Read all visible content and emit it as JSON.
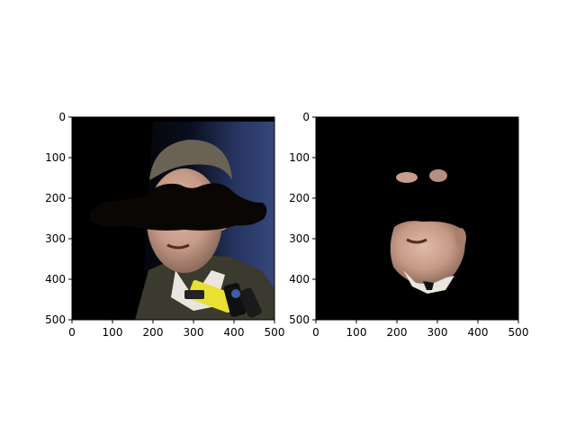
{
  "chart_data": [
    {
      "type": "image",
      "title": "",
      "xlabel": "",
      "ylabel": "",
      "xlim": [
        0,
        500
      ],
      "ylim": [
        500,
        0
      ],
      "xticks": [
        0,
        100,
        200,
        300,
        400,
        500
      ],
      "yticks": [
        0,
        100,
        200,
        300,
        400,
        500
      ],
      "grid": false,
      "image_content": "photo of a man in a suit speaking into microphones, with a large black mustache-shaped mask covering the eyes and nose region; black background on the left side"
    },
    {
      "type": "image",
      "title": "",
      "xlabel": "",
      "ylabel": "",
      "xlim": [
        0,
        500
      ],
      "ylim": [
        500,
        0
      ],
      "xticks": [
        0,
        100,
        200,
        300,
        400,
        500
      ],
      "yticks": [
        0,
        100,
        200,
        300,
        400,
        500
      ],
      "grid": false,
      "image_content": "segmented face of the same man on a black background: two small eye-brow patches near the top and the lower face (mouth, chin, collar) visible"
    }
  ],
  "colors": {
    "background": "#ffffff",
    "image_black": "#000000",
    "axis": "#000000",
    "skin": "#c9a08c",
    "suit": "#3b3a2c",
    "hair": "#6b6256",
    "bg_blue": "#2c3b68",
    "mic_yellow": "#e8e033"
  }
}
